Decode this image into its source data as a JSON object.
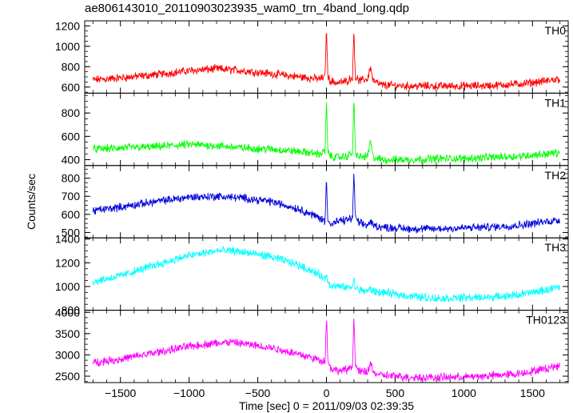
{
  "title": "ae806143010_20110903023935_wam0_trn_4band_long.qdp",
  "chart_data": {
    "type": "line",
    "title": "ae806143010_20110903023935_wam0_trn_4band_long.qdp",
    "xlabel": "Time [sec] 0 = 2011/09/03 02:39:35",
    "ylabel": "Counts/sec",
    "xlim": [
      -1760,
      1760
    ],
    "xticks": [
      -1500,
      -1000,
      -500,
      0,
      500,
      1000,
      1500
    ],
    "xtick_labels": [
      "−1500",
      "−1000",
      "−500",
      "0",
      "500",
      "1000",
      "1500"
    ],
    "grid": false,
    "panels": [
      {
        "name": "TH0",
        "color": "#ff0000",
        "ylim": [
          540,
          1250
        ],
        "yticks": [
          600,
          800,
          1000,
          1200
        ],
        "x": [
          -1700,
          -1500,
          -1250,
          -1000,
          -800,
          -700,
          -600,
          -400,
          -200,
          -50,
          -10,
          0,
          10,
          30,
          80,
          150,
          190,
          200,
          210,
          240,
          300,
          320,
          340,
          400,
          600,
          800,
          1000,
          1200,
          1400,
          1600,
          1700
        ],
        "y": [
          670,
          690,
          720,
          760,
          780,
          770,
          760,
          730,
          700,
          680,
          700,
          1200,
          700,
          660,
          640,
          660,
          700,
          1180,
          700,
          660,
          680,
          800,
          660,
          620,
          610,
          610,
          610,
          615,
          630,
          660,
          680
        ]
      },
      {
        "name": "TH1",
        "color": "#00ff00",
        "ylim": [
          350,
          970
        ],
        "yticks": [
          400,
          600,
          800
        ],
        "x": [
          -1700,
          -1500,
          -1250,
          -1000,
          -800,
          -700,
          -600,
          -400,
          -200,
          -50,
          -10,
          0,
          10,
          30,
          80,
          150,
          190,
          200,
          210,
          240,
          300,
          320,
          340,
          400,
          600,
          800,
          1000,
          1200,
          1400,
          1600,
          1700
        ],
        "y": [
          490,
          500,
          510,
          530,
          520,
          510,
          500,
          490,
          470,
          450,
          470,
          920,
          470,
          430,
          420,
          430,
          460,
          940,
          460,
          420,
          430,
          560,
          420,
          400,
          400,
          410,
          410,
          420,
          430,
          450,
          460
        ]
      },
      {
        "name": "TH2",
        "color": "#0000dd",
        "ylim": [
          470,
          870
        ],
        "yticks": [
          500,
          600,
          700,
          800
        ],
        "x": [
          -1700,
          -1500,
          -1250,
          -1000,
          -800,
          -700,
          -600,
          -400,
          -200,
          -50,
          -10,
          0,
          10,
          30,
          80,
          150,
          190,
          200,
          210,
          240,
          300,
          320,
          340,
          400,
          600,
          800,
          1000,
          1200,
          1400,
          1600,
          1700
        ],
        "y": [
          620,
          640,
          670,
          695,
          700,
          695,
          690,
          670,
          630,
          580,
          560,
          810,
          580,
          540,
          560,
          570,
          580,
          850,
          580,
          550,
          540,
          560,
          540,
          530,
          520,
          520,
          525,
          530,
          540,
          560,
          570
        ]
      },
      {
        "name": "TH3",
        "color": "#00ffff",
        "ylim": [
          800,
          1410
        ],
        "yticks": [
          800,
          1000,
          1200,
          1400
        ],
        "x": [
          -1700,
          -1500,
          -1250,
          -1000,
          -800,
          -700,
          -600,
          -400,
          -200,
          -50,
          -10,
          0,
          10,
          30,
          80,
          150,
          190,
          200,
          210,
          240,
          300,
          320,
          340,
          400,
          600,
          800,
          1000,
          1200,
          1400,
          1600,
          1700
        ],
        "y": [
          1040,
          1090,
          1180,
          1260,
          1300,
          1300,
          1290,
          1250,
          1180,
          1100,
          1060,
          1100,
          1050,
          1010,
          1000,
          990,
          1000,
          1060,
          990,
          970,
          960,
          980,
          960,
          950,
          920,
          900,
          905,
          910,
          930,
          970,
          1000
        ]
      },
      {
        "name": "TH0123",
        "color": "#ff00ff",
        "ylim": [
          2350,
          4050
        ],
        "yticks": [
          2500,
          3000,
          3500,
          4000
        ],
        "x": [
          -1700,
          -1500,
          -1250,
          -1000,
          -800,
          -700,
          -600,
          -400,
          -200,
          -50,
          -10,
          0,
          10,
          30,
          80,
          150,
          190,
          200,
          210,
          240,
          300,
          320,
          340,
          400,
          600,
          800,
          1000,
          1200,
          1400,
          1600,
          1700
        ],
        "y": [
          2820,
          2900,
          3050,
          3200,
          3280,
          3300,
          3260,
          3170,
          3020,
          2880,
          2850,
          3980,
          2850,
          2700,
          2620,
          2650,
          2750,
          3990,
          2760,
          2600,
          2600,
          2840,
          2580,
          2520,
          2480,
          2470,
          2480,
          2510,
          2560,
          2680,
          2760
        ]
      }
    ]
  }
}
